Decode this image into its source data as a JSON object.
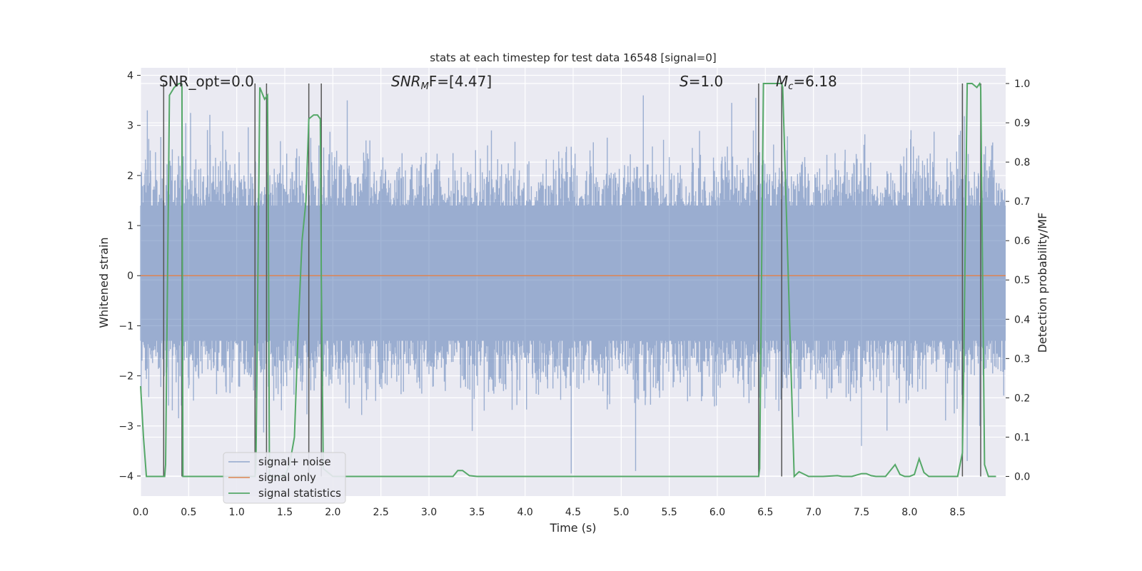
{
  "chart_data": {
    "type": "line",
    "title": "stats at each timestep for test data 16548 [signal=0]",
    "xlabel": "Time (s)",
    "ylabel": "Whitened strain",
    "y2label": "Detection probability/MF",
    "xlim": [
      0,
      9
    ],
    "ylim": [
      -4.4,
      4.15
    ],
    "y2lim": [
      -0.05,
      1.04
    ],
    "xticks": [
      "0.0",
      "0.5",
      "1.0",
      "1.5",
      "2.0",
      "2.5",
      "3.0",
      "3.5",
      "4.0",
      "4.5",
      "5.0",
      "5.5",
      "6.0",
      "6.5",
      "7.0",
      "7.5",
      "8.0",
      "8.5"
    ],
    "yticks": [
      "4",
      "3",
      "2",
      "1",
      "0",
      "−1",
      "−2",
      "−3",
      "−4"
    ],
    "y2ticks": [
      "1.0",
      "0.9",
      "0.8",
      "0.7",
      "0.6",
      "0.5",
      "0.4",
      "0.3",
      "0.2",
      "0.1",
      "0.0"
    ],
    "grid": true,
    "legend_position": "lower-left",
    "annotations": {
      "snr_opt": "SNR_opt=0.0",
      "snr_mf_label": "SNR",
      "snr_mf_sub": "M",
      "snr_mf_rest": "F=[4.47]",
      "s_label": "S",
      "s_rest": "=1.0",
      "mc_label": "M",
      "mc_sub": "c",
      "mc_rest": "=6.18"
    },
    "series": [
      {
        "name": "signal+ noise",
        "color": "#4c72b0",
        "description_amplitude": {
          "typical_band": [
            -1.3,
            1.4
          ],
          "peaks": [
            [
              0.07,
              3.3
            ],
            [
              0.52,
              3.25
            ],
            [
              2.15,
              3.5
            ],
            [
              5.23,
              3.6
            ],
            [
              6.15,
              3.45
            ],
            [
              6.4,
              3.55
            ],
            [
              8.55,
              3.7
            ],
            [
              4.48,
              -3.95
            ],
            [
              5.15,
              -3.9
            ],
            [
              3.45,
              -3.1
            ],
            [
              7.5,
              -3.4
            ],
            [
              8.6,
              -3.7
            ]
          ]
        }
      },
      {
        "name": "signal only",
        "color": "#dd8452",
        "x": [
          0,
          9
        ],
        "y": [
          0,
          0
        ]
      },
      {
        "name": "signal statistics",
        "color": "#55a868",
        "axis": "right",
        "x": [
          0.0,
          0.03,
          0.06,
          0.25,
          0.26,
          0.3,
          0.35,
          0.4,
          0.42,
          0.43,
          0.44,
          0.5,
          1.19,
          1.2,
          1.24,
          1.29,
          1.32,
          1.33,
          1.34,
          1.5,
          1.55,
          1.6,
          1.64,
          1.68,
          1.72,
          1.75,
          1.8,
          1.84,
          1.87,
          1.88,
          1.9,
          2.0,
          3.25,
          3.3,
          3.35,
          3.42,
          3.5,
          4.0,
          5.0,
          6.0,
          6.43,
          6.44,
          6.48,
          6.6,
          6.67,
          6.68,
          6.8,
          6.85,
          6.95,
          7.0,
          7.1,
          7.25,
          7.3,
          7.4,
          7.5,
          7.55,
          7.6,
          7.65,
          7.75,
          7.8,
          7.85,
          7.9,
          7.95,
          8.0,
          8.05,
          8.1,
          8.15,
          8.2,
          8.25,
          8.3,
          8.4,
          8.5,
          8.55,
          8.56,
          8.6,
          8.62,
          8.65,
          8.7,
          8.73,
          8.74,
          8.78,
          8.82,
          8.9
        ],
        "y": [
          0.23,
          0.1,
          0.0,
          0.0,
          0.03,
          0.97,
          0.99,
          1.0,
          1.0,
          0.99,
          0.0,
          0.0,
          0.0,
          0.03,
          0.99,
          0.96,
          0.97,
          0.6,
          0.0,
          0.0,
          0.03,
          0.1,
          0.38,
          0.6,
          0.7,
          0.91,
          0.92,
          0.92,
          0.91,
          0.5,
          0.02,
          0.0,
          0.0,
          0.015,
          0.015,
          0.002,
          0.0,
          0.0,
          0.0,
          0.0,
          0.0,
          0.02,
          1.0,
          1.0,
          1.0,
          0.99,
          0.0,
          0.012,
          0.0,
          0.0,
          0.0,
          0.002,
          0.0,
          0.0,
          0.007,
          0.007,
          0.002,
          0.0,
          0.0,
          0.015,
          0.03,
          0.005,
          0.0,
          0.0,
          0.005,
          0.045,
          0.01,
          0.0,
          0.0,
          0.0,
          0.0,
          0.0,
          0.06,
          0.2,
          1.0,
          1.0,
          1.0,
          0.99,
          1.0,
          0.99,
          0.03,
          0.0,
          0.0
        ]
      }
    ],
    "vertical_lines_x": [
      0.24,
      0.43,
      1.19,
      1.31,
      1.75,
      1.88,
      6.43,
      6.67,
      8.55,
      8.74
    ]
  },
  "legend": {
    "items": [
      {
        "label": "signal+ noise",
        "color": "#4c72b0"
      },
      {
        "label": "signal only",
        "color": "#dd8452"
      },
      {
        "label": "signal statistics",
        "color": "#55a868"
      }
    ]
  }
}
